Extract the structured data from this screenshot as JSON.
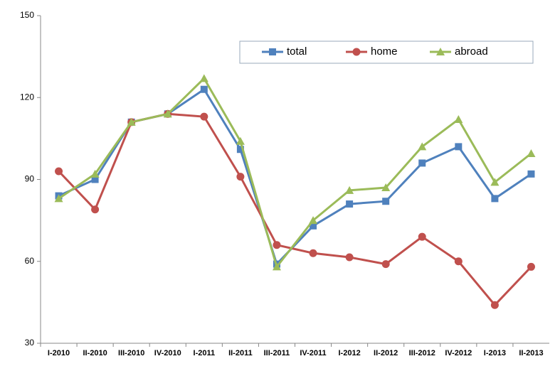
{
  "chart_data": {
    "type": "line",
    "categories": [
      "I-2010",
      "II-2010",
      "III-2010",
      "IV-2010",
      "I-2011",
      "II-2011",
      "III-2011",
      "IV-2011",
      "I-2012",
      "II-2012",
      "III-2012",
      "IV-2012",
      "I-2013",
      "II-2013"
    ],
    "series": [
      {
        "name": "total",
        "color": "#4f81bd",
        "marker": "square",
        "values": [
          84,
          90,
          111,
          114,
          123,
          101,
          59,
          73,
          81,
          82,
          96,
          102,
          83,
          92
        ]
      },
      {
        "name": "home",
        "color": "#c0504d",
        "marker": "circle",
        "values": [
          93,
          79,
          111,
          114,
          113,
          91,
          66,
          63,
          61.5,
          59,
          69,
          60,
          44,
          58
        ]
      },
      {
        "name": "abroad",
        "color": "#9bbb59",
        "marker": "triangle",
        "values": [
          83,
          92,
          111,
          114,
          127,
          104,
          58,
          75,
          86,
          87,
          102,
          112,
          89,
          99.5
        ]
      }
    ],
    "ylim": [
      30,
      150
    ],
    "yticks": [
      30,
      60,
      90,
      120,
      150
    ],
    "grid": false,
    "legend": "top-right"
  }
}
